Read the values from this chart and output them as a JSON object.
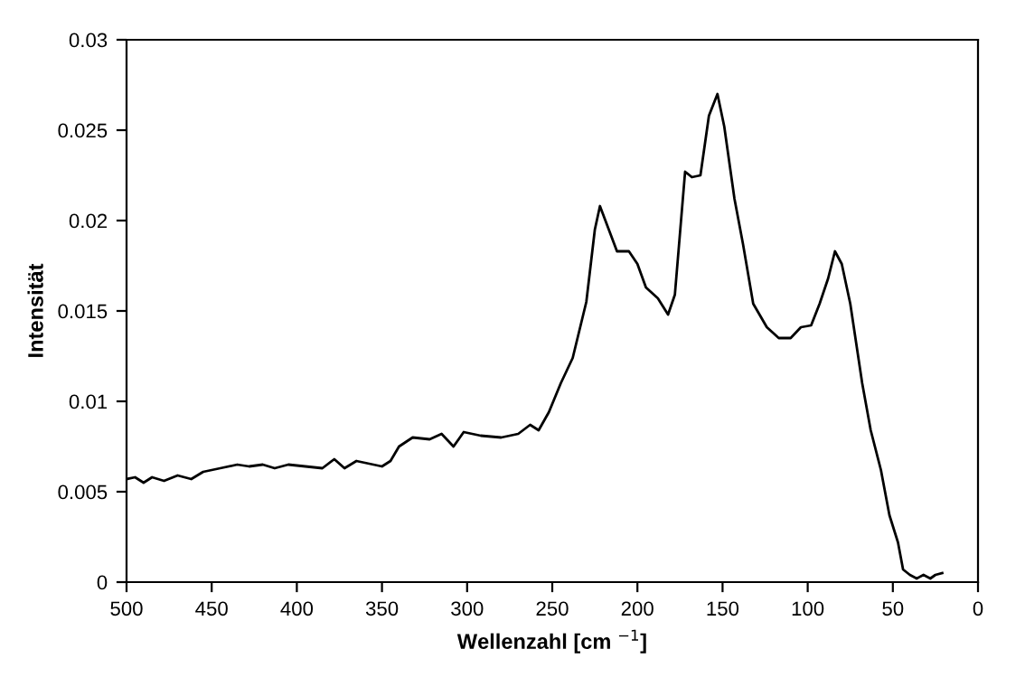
{
  "chart_data": {
    "type": "line",
    "xlabel": "Wellenzahl [cm $^{−1}$]",
    "ylabel": "Intensität",
    "xlim": [
      500,
      0
    ],
    "xticks": [
      500,
      450,
      400,
      350,
      300,
      250,
      200,
      150,
      100,
      50,
      0
    ],
    "ylim": [
      0,
      0.03
    ],
    "yticks": [
      0,
      0.005,
      0.01,
      0.015,
      0.02,
      0.025,
      0.03
    ],
    "grid": false,
    "marker": "none",
    "line_style": "solid",
    "series": [
      {
        "color": "#000000",
        "x": [
          500,
          495,
          490,
          485,
          478,
          470,
          462,
          455,
          445,
          435,
          428,
          420,
          413,
          405,
          395,
          385,
          378,
          372,
          365,
          355,
          350,
          345,
          340,
          332,
          322,
          315,
          308,
          302,
          292,
          280,
          270,
          263,
          258,
          252,
          245,
          238,
          230,
          225,
          222,
          218,
          212,
          205,
          200,
          195,
          188,
          182,
          178,
          172,
          168,
          163,
          158,
          153,
          149,
          143,
          138,
          132,
          124,
          117,
          110,
          104,
          98,
          93,
          88,
          84,
          80,
          75,
          68,
          63,
          57,
          52,
          47,
          44,
          40,
          36,
          32,
          28,
          25,
          21
        ],
        "values": [
          0.0057,
          0.0058,
          0.0055,
          0.0058,
          0.0056,
          0.0059,
          0.0057,
          0.0061,
          0.0063,
          0.0065,
          0.0064,
          0.0065,
          0.0063,
          0.0065,
          0.0064,
          0.0063,
          0.0068,
          0.0063,
          0.0067,
          0.0065,
          0.0064,
          0.0067,
          0.0075,
          0.008,
          0.0079,
          0.0082,
          0.0075,
          0.0083,
          0.0081,
          0.008,
          0.0082,
          0.0087,
          0.0084,
          0.0094,
          0.011,
          0.0124,
          0.0155,
          0.0195,
          0.0208,
          0.0198,
          0.0183,
          0.0183,
          0.0176,
          0.0163,
          0.0157,
          0.0148,
          0.0159,
          0.0227,
          0.0224,
          0.0225,
          0.0258,
          0.027,
          0.0252,
          0.0212,
          0.0187,
          0.0154,
          0.0141,
          0.0135,
          0.0135,
          0.0141,
          0.0142,
          0.0154,
          0.0168,
          0.0183,
          0.0176,
          0.0154,
          0.011,
          0.0084,
          0.0062,
          0.0037,
          0.0022,
          0.0007,
          0.0004,
          0.0002,
          0.0004,
          0.0002,
          0.0004,
          0.0005
        ]
      }
    ]
  }
}
